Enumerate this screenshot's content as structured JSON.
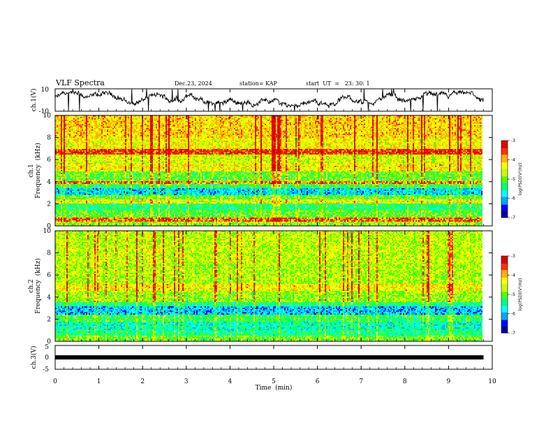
{
  "header": {
    "title": "VLF Spectra",
    "date": "Dec.23, 2024",
    "station": "station= KAP",
    "start_ut": "start  UT  =   23: 30: 1"
  },
  "colors": {
    "line": "#000000",
    "colormap": [
      "#0000a0",
      "#0000ff",
      "#00a8ff",
      "#00ffff",
      "#00ff80",
      "#50ff00",
      "#c8ff00",
      "#ffff00",
      "#ffb000",
      "#ff3000",
      "#e00000",
      "#ffffff"
    ]
  },
  "chart_data": [
    {
      "type": "line",
      "id": "ch1-waveform",
      "ylabel": "ch.1(V)",
      "ylim": [
        -10,
        10
      ],
      "y_ticks": [
        "10",
        "-10"
      ],
      "x_range_min": [
        0,
        9.8
      ]
    },
    {
      "type": "heatmap",
      "id": "ch1-spectrogram",
      "ylabel_line1": "ch.1",
      "ylabel_line2": "Frequency  (kHz)",
      "ylim_khz": [
        0,
        10
      ],
      "y_ticks": [
        "0",
        "2",
        "4",
        "6",
        "8",
        "10"
      ],
      "x_range_min": [
        0,
        9.8
      ],
      "bands": [
        {
          "from": 0.0,
          "to": 0.4,
          "level": 0.55
        },
        {
          "from": 0.4,
          "to": 0.8,
          "level": 0.82
        },
        {
          "from": 0.8,
          "to": 1.4,
          "level": 0.5
        },
        {
          "from": 1.4,
          "to": 2.0,
          "level": 0.42
        },
        {
          "from": 2.0,
          "to": 2.4,
          "level": 0.66
        },
        {
          "from": 2.4,
          "to": 2.8,
          "level": 0.5
        },
        {
          "from": 2.8,
          "to": 3.4,
          "level": 0.28
        },
        {
          "from": 3.4,
          "to": 3.8,
          "level": 0.45
        },
        {
          "from": 3.8,
          "to": 4.0,
          "level": 0.8
        },
        {
          "from": 4.0,
          "to": 5.0,
          "level": 0.5
        },
        {
          "from": 5.0,
          "to": 5.6,
          "level": 0.68
        },
        {
          "from": 5.6,
          "to": 6.4,
          "level": 0.62
        },
        {
          "from": 6.4,
          "to": 6.9,
          "level": 0.88
        },
        {
          "from": 6.9,
          "to": 8.0,
          "level": 0.66
        },
        {
          "from": 8.0,
          "to": 10.0,
          "level": 0.72
        }
      ],
      "colorbar": {
        "label": "log(PSD)(V²/Hz)",
        "ticks": [
          "-3",
          "-4",
          "-5",
          "-6",
          "-7"
        ],
        "range": [
          -7,
          -3
        ]
      }
    },
    {
      "type": "heatmap",
      "id": "ch2-spectrogram",
      "ylabel_line1": "ch.2",
      "ylabel_line2": "Frequency  (kHz)",
      "ylim_khz": [
        0,
        10
      ],
      "y_ticks": [
        "0",
        "2",
        "4",
        "6",
        "8",
        "10"
      ],
      "x_range_min": [
        0,
        9.8
      ],
      "bands": [
        {
          "from": 0.0,
          "to": 0.5,
          "level": 0.52
        },
        {
          "from": 0.5,
          "to": 1.0,
          "level": 0.4
        },
        {
          "from": 1.0,
          "to": 1.8,
          "level": 0.36
        },
        {
          "from": 1.8,
          "to": 2.4,
          "level": 0.46
        },
        {
          "from": 2.4,
          "to": 3.2,
          "level": 0.26
        },
        {
          "from": 3.2,
          "to": 3.6,
          "level": 0.42
        },
        {
          "from": 3.6,
          "to": 4.6,
          "level": 0.56
        },
        {
          "from": 4.6,
          "to": 5.2,
          "level": 0.68
        },
        {
          "from": 5.2,
          "to": 7.0,
          "level": 0.58
        },
        {
          "from": 7.0,
          "to": 10.0,
          "level": 0.6
        }
      ],
      "colorbar": {
        "label": "log(PSD)(V²/Hz)",
        "ticks": [
          "-3",
          "-4",
          "-5",
          "-6",
          "-7"
        ],
        "range": [
          -7,
          -3
        ]
      }
    },
    {
      "type": "line",
      "id": "ch3-waveform",
      "ylabel": "ch.3(V)",
      "ylim": [
        -5,
        5
      ],
      "y_ticks": [
        "5",
        "0",
        "-5"
      ],
      "level_v": 0,
      "x_range_min": [
        0,
        9.8
      ]
    }
  ],
  "x_axis": {
    "label": "Time  (min)",
    "ticks": [
      "0",
      "1",
      "2",
      "3",
      "4",
      "5",
      "6",
      "7",
      "8",
      "9",
      "10"
    ],
    "range": [
      0,
      10
    ]
  }
}
